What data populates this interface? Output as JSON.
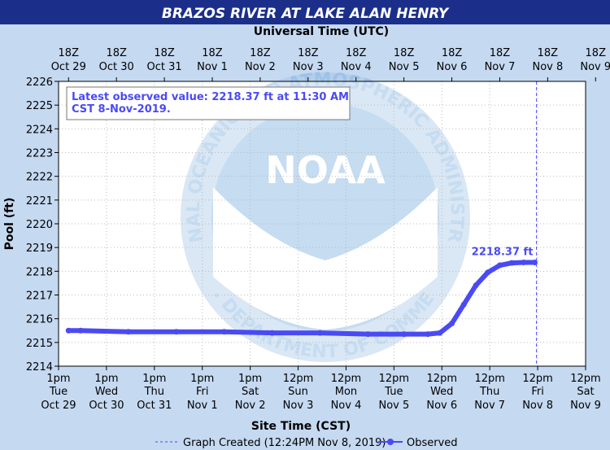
{
  "title": "BRAZOS RIVER AT LAKE ALAN HENRY",
  "colors": {
    "title_bar": "#1b2f8a",
    "background": "#c5d9f1",
    "plot_area": "#ffffff",
    "series": "#4a4af5",
    "grid": "#bbbbbb"
  },
  "watermark": {
    "logo_word": "NOAA",
    "ring_text": "NATIONAL OCEANIC AND ATMOSPHERIC ADMINISTRATION",
    "bottom_text": "U.S. DEPARTMENT OF COMMERCE"
  },
  "chart_data": {
    "type": "line",
    "top_axis_title": "Universal Time (UTC)",
    "xlabel": "Site Time (CST)",
    "ylabel": "Pool (ft)",
    "ylim": [
      2214,
      2226
    ],
    "y_ticks": [
      2214,
      2215,
      2216,
      2217,
      2218,
      2219,
      2220,
      2221,
      2222,
      2223,
      2224,
      2225,
      2226
    ],
    "grid": true,
    "x_categories": [
      {
        "time": "1pm",
        "day": "Tue",
        "date": "Oct 29"
      },
      {
        "time": "1pm",
        "day": "Wed",
        "date": "Oct 30"
      },
      {
        "time": "1pm",
        "day": "Thu",
        "date": "Oct 31"
      },
      {
        "time": "1pm",
        "day": "Fri",
        "date": "Nov 1"
      },
      {
        "time": "1pm",
        "day": "Sat",
        "date": "Nov 2"
      },
      {
        "time": "12pm",
        "day": "Sun",
        "date": "Nov 3"
      },
      {
        "time": "12pm",
        "day": "Mon",
        "date": "Nov 4"
      },
      {
        "time": "12pm",
        "day": "Tue",
        "date": "Nov 5"
      },
      {
        "time": "12pm",
        "day": "Wed",
        "date": "Nov 6"
      },
      {
        "time": "12pm",
        "day": "Thu",
        "date": "Nov 7"
      },
      {
        "time": "12pm",
        "day": "Fri",
        "date": "Nov 8"
      },
      {
        "time": "12pm",
        "day": "Sat",
        "date": "Nov 9"
      }
    ],
    "top_categories": [
      {
        "time": "18Z",
        "date": "Oct 29"
      },
      {
        "time": "18Z",
        "date": "Oct 30"
      },
      {
        "time": "18Z",
        "date": "Oct 31"
      },
      {
        "time": "18Z",
        "date": "Nov 1"
      },
      {
        "time": "18Z",
        "date": "Nov 2"
      },
      {
        "time": "18Z",
        "date": "Nov 3"
      },
      {
        "time": "18Z",
        "date": "Nov 4"
      },
      {
        "time": "18Z",
        "date": "Nov 5"
      },
      {
        "time": "18Z",
        "date": "Nov 6"
      },
      {
        "time": "18Z",
        "date": "Nov 7"
      },
      {
        "time": "18Z",
        "date": "Nov 8"
      },
      {
        "time": "18Z",
        "date": "Nov 9"
      }
    ],
    "series": [
      {
        "name": "Observed",
        "x": [
          "Oct 29 18:00",
          "Oct 30 00:00",
          "Oct 31 00:00",
          "Nov 1 00:00",
          "Nov 2 00:00",
          "Nov 3 00:00",
          "Nov 4 00:00",
          "Nov 5 00:00",
          "Nov 5 18:00",
          "Nov 6 06:00",
          "Nov 6 12:00",
          "Nov 6 18:00",
          "Nov 7 00:00",
          "Nov 7 06:00",
          "Nov 7 12:00",
          "Nov 7 18:00",
          "Nov 8 00:00",
          "Nov 8 06:00",
          "Nov 8 11:30"
        ],
        "values": [
          2215.5,
          2215.5,
          2215.45,
          2215.45,
          2215.45,
          2215.4,
          2215.4,
          2215.35,
          2215.35,
          2215.35,
          2215.4,
          2215.8,
          2216.6,
          2217.4,
          2217.95,
          2218.25,
          2218.35,
          2218.37,
          2218.37
        ]
      }
    ],
    "annotation": "Latest observed value: 2218.37 ft at 11:30 AM CST 8-Nov-2019.",
    "end_label": "2218.37 ft",
    "graph_created": "Nov 8 12:24PM",
    "legend": [
      {
        "label": "Graph Created (12:24PM Nov 8, 2019)",
        "style": "dashed"
      },
      {
        "label": "Observed",
        "style": "line-marker"
      }
    ],
    "legend_position": "bottom"
  }
}
